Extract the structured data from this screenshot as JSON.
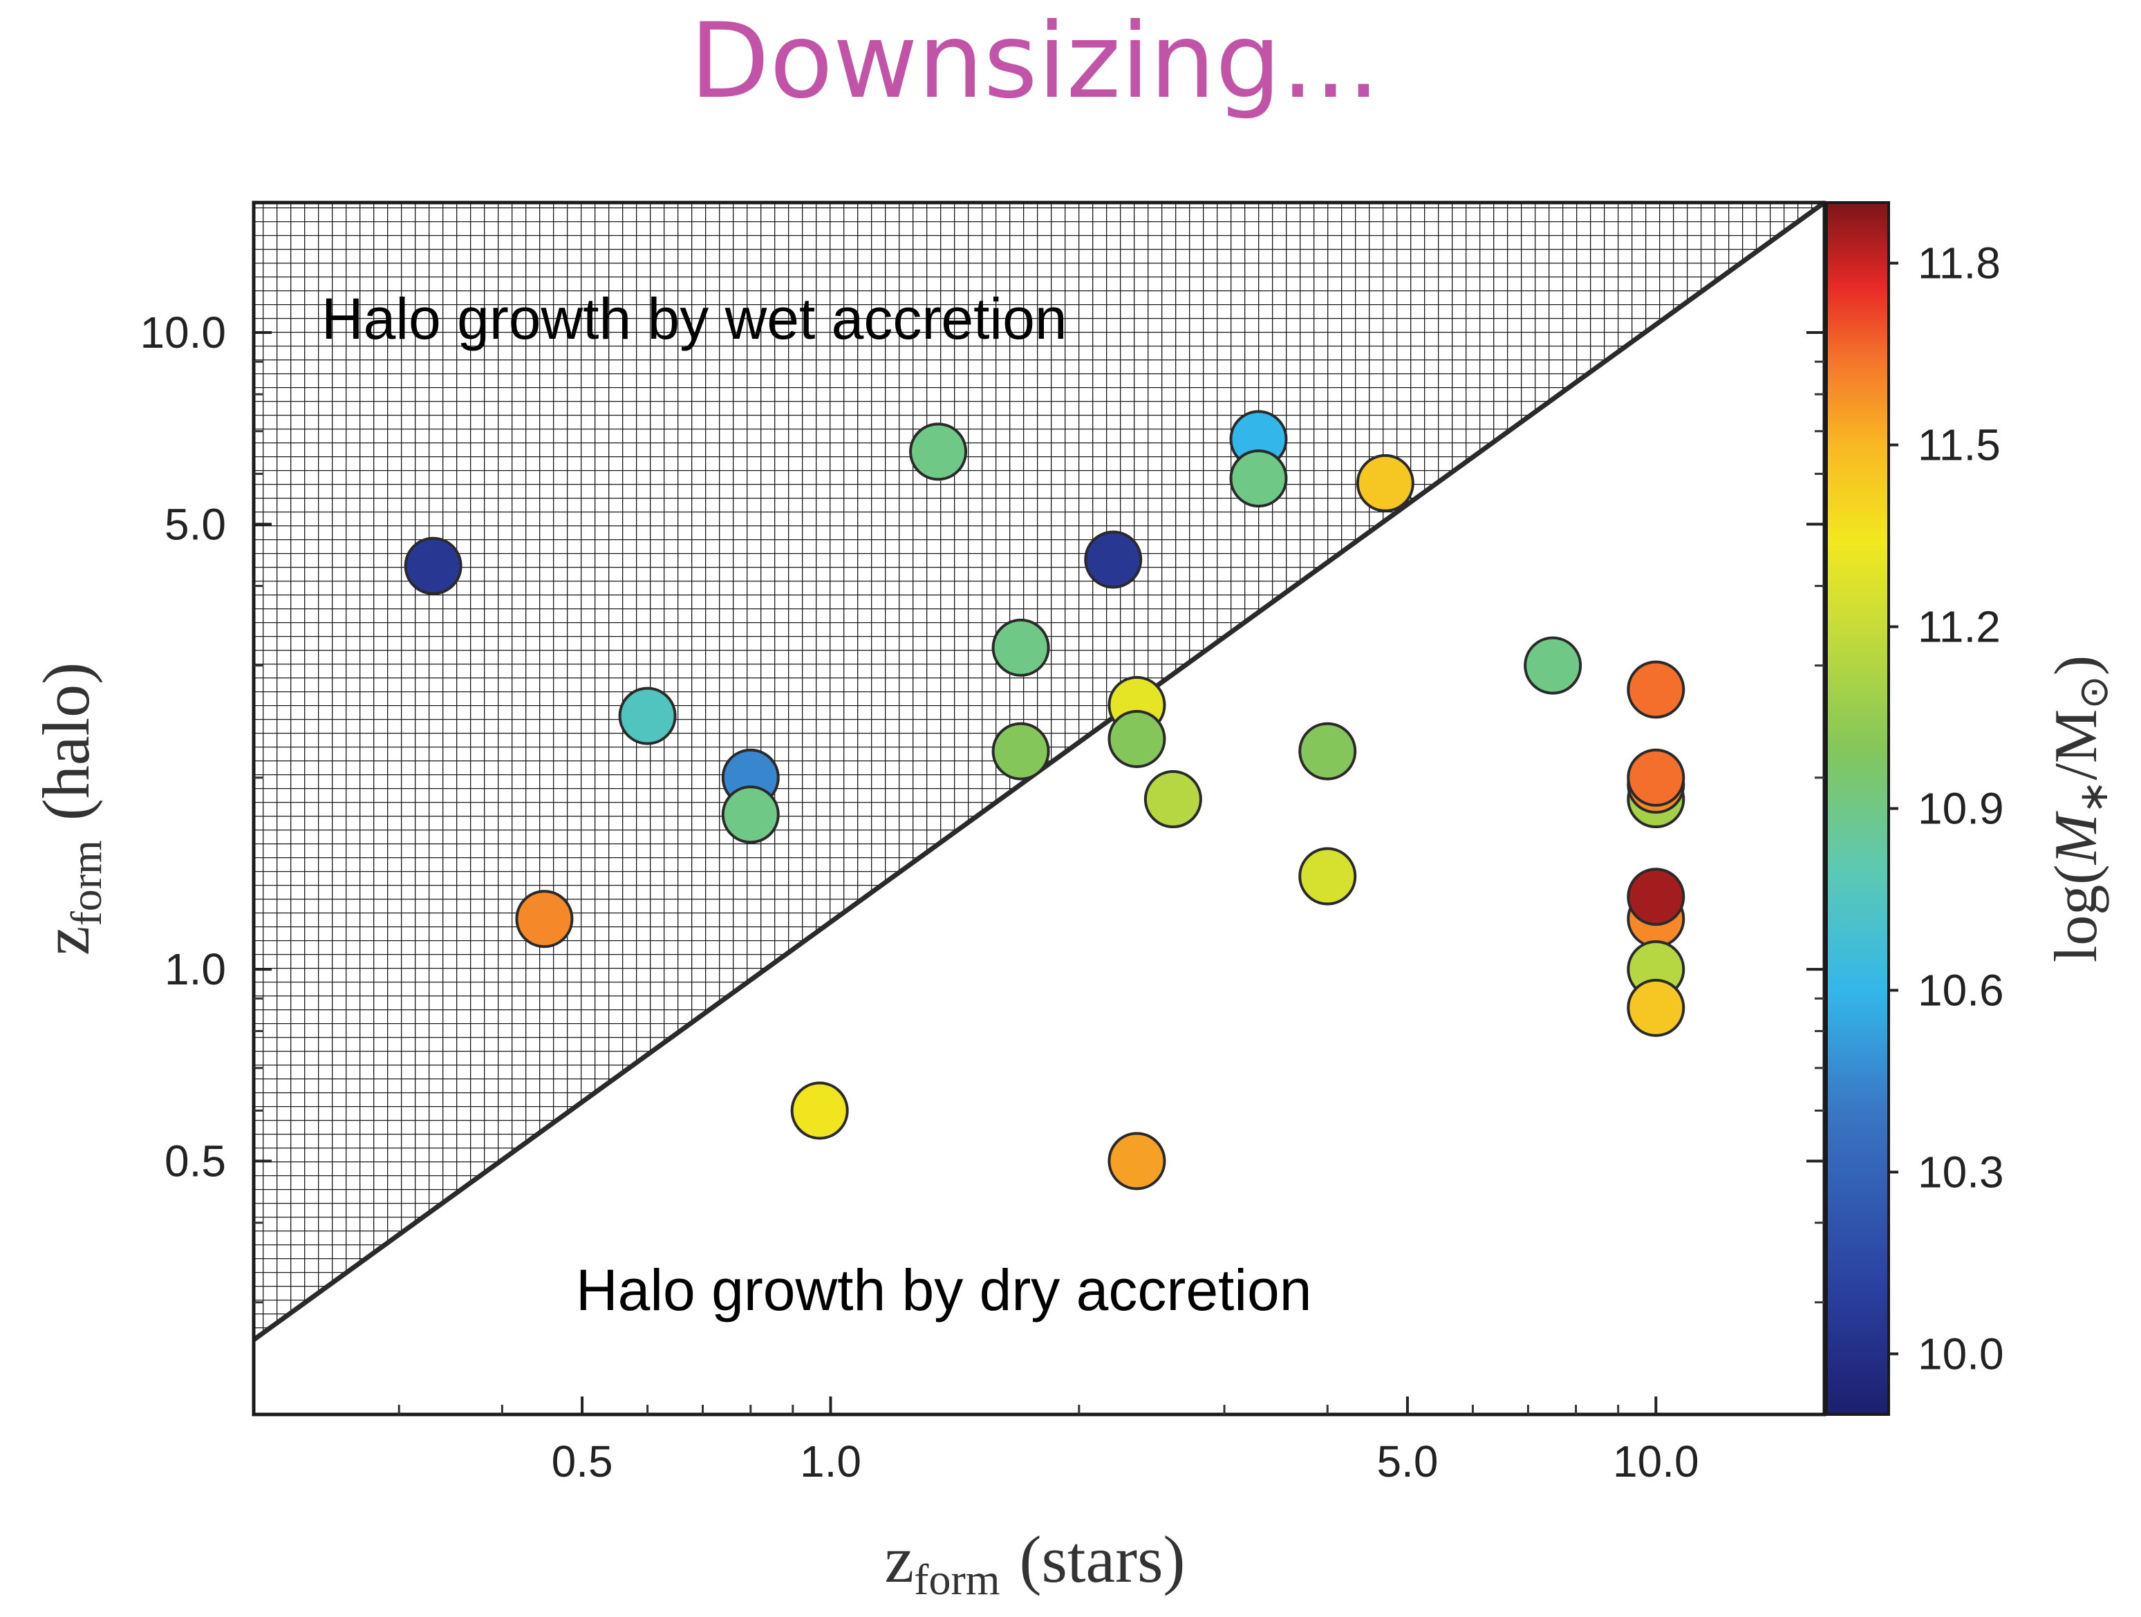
{
  "title": "Downsizing...",
  "chart_data": {
    "type": "scatter",
    "title": "Downsizing...",
    "xlabel": "z_form (stars)",
    "ylabel": "z_form (halo)",
    "xlabel_parts": {
      "base": "z",
      "sub": "form",
      "rest": "(stars)"
    },
    "ylabel_parts": {
      "base": "z",
      "sub": "form",
      "rest": "(halo)"
    },
    "xscale": "log",
    "yscale": "log",
    "xlim": [
      0.2,
      16
    ],
    "ylim": [
      0.2,
      16
    ],
    "xticks": [
      0.5,
      1.0,
      5.0,
      10.0
    ],
    "xtick_labels": [
      "0.5",
      "1.0",
      "5.0",
      "10.0"
    ],
    "yticks": [
      0.5,
      1.0,
      5.0,
      10.0
    ],
    "ytick_labels": [
      "0.5",
      "1.0",
      "5.0",
      "10.0"
    ],
    "grid": false,
    "hatched_region": "above diagonal y = x",
    "annotations": [
      "Halo growth by wet accretion",
      "Halo growth by dry accretion"
    ],
    "colorbar": {
      "label": "log(M_*/M_⊙)",
      "label_parts": {
        "pre": "log(",
        "base": "M",
        "sub1": "∗",
        "mid": "/M",
        "sub2": "⊙",
        "post": ")"
      },
      "range": [
        9.9,
        11.9
      ],
      "ticks": [
        10.0,
        10.3,
        10.6,
        10.9,
        11.2,
        11.5,
        11.8
      ],
      "tick_labels": [
        "10.0",
        "10.3",
        "10.6",
        "10.9",
        "11.2",
        "11.5",
        "11.8"
      ],
      "colormap": "jet"
    },
    "points": [
      {
        "x": 0.33,
        "y": 4.3,
        "c": 10.05
      },
      {
        "x": 0.45,
        "y": 1.2,
        "c": 11.6
      },
      {
        "x": 0.6,
        "y": 2.5,
        "c": 10.75
      },
      {
        "x": 0.8,
        "y": 2.0,
        "c": 10.45
      },
      {
        "x": 0.8,
        "y": 1.75,
        "c": 10.9
      },
      {
        "x": 0.97,
        "y": 0.6,
        "c": 11.35
      },
      {
        "x": 1.35,
        "y": 6.5,
        "c": 10.9
      },
      {
        "x": 1.7,
        "y": 3.2,
        "c": 10.9
      },
      {
        "x": 1.7,
        "y": 2.2,
        "c": 11.0
      },
      {
        "x": 2.2,
        "y": 4.4,
        "c": 10.05
      },
      {
        "x": 2.35,
        "y": 2.6,
        "c": 11.3
      },
      {
        "x": 2.35,
        "y": 2.3,
        "c": 11.0
      },
      {
        "x": 2.35,
        "y": 0.5,
        "c": 11.55
      },
      {
        "x": 2.6,
        "y": 1.85,
        "c": 11.15
      },
      {
        "x": 3.3,
        "y": 6.8,
        "c": 10.6
      },
      {
        "x": 3.3,
        "y": 5.9,
        "c": 10.9
      },
      {
        "x": 4.0,
        "y": 2.2,
        "c": 11.0
      },
      {
        "x": 4.0,
        "y": 1.4,
        "c": 11.25
      },
      {
        "x": 4.7,
        "y": 5.8,
        "c": 11.45
      },
      {
        "x": 7.5,
        "y": 3.0,
        "c": 10.9
      },
      {
        "x": 10.0,
        "y": 2.75,
        "c": 11.65
      },
      {
        "x": 10.0,
        "y": 1.85,
        "c": 11.1
      },
      {
        "x": 10.0,
        "y": 1.95,
        "c": 11.6
      },
      {
        "x": 10.0,
        "y": 2.0,
        "c": 11.65
      },
      {
        "x": 10.0,
        "y": 1.2,
        "c": 11.6
      },
      {
        "x": 10.0,
        "y": 1.3,
        "c": 11.85
      },
      {
        "x": 10.0,
        "y": 1.0,
        "c": 11.15
      },
      {
        "x": 10.0,
        "y": 0.87,
        "c": 11.45
      }
    ]
  }
}
